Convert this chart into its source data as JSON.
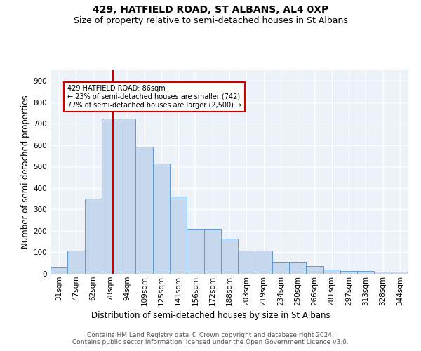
{
  "title": "429, HATFIELD ROAD, ST ALBANS, AL4 0XP",
  "subtitle": "Size of property relative to semi-detached houses in St Albans",
  "xlabel": "Distribution of semi-detached houses by size in St Albans",
  "ylabel": "Number of semi-detached properties",
  "footnote": "Contains HM Land Registry data © Crown copyright and database right 2024.\nContains public sector information licensed under the Open Government Licence v3.0.",
  "bin_labels": [
    "31sqm",
    "47sqm",
    "62sqm",
    "78sqm",
    "94sqm",
    "109sqm",
    "125sqm",
    "141sqm",
    "156sqm",
    "172sqm",
    "188sqm",
    "203sqm",
    "219sqm",
    "234sqm",
    "250sqm",
    "266sqm",
    "281sqm",
    "297sqm",
    "313sqm",
    "328sqm",
    "344sqm"
  ],
  "bar_heights": [
    30,
    107,
    350,
    725,
    725,
    592,
    514,
    360,
    209,
    209,
    165,
    107,
    107,
    55,
    55,
    35,
    20,
    12,
    12,
    10,
    10
  ],
  "bar_color": "#c5d8ed",
  "bar_edge_color": "#5b9bd5",
  "highlight_line_index": 3,
  "highlight_color": "#cc0000",
  "annotation_text": "429 HATFIELD ROAD: 86sqm\n← 23% of semi-detached houses are smaller (742)\n77% of semi-detached houses are larger (2,500) →",
  "annotation_box_color": "#cc0000",
  "ylim": [
    0,
    950
  ],
  "yticks": [
    0,
    100,
    200,
    300,
    400,
    500,
    600,
    700,
    800,
    900
  ],
  "background_color": "#edf1f8",
  "grid_color": "#ffffff",
  "title_fontsize": 10,
  "subtitle_fontsize": 9,
  "axis_label_fontsize": 8.5,
  "tick_fontsize": 7.5,
  "footnote_fontsize": 6.5
}
